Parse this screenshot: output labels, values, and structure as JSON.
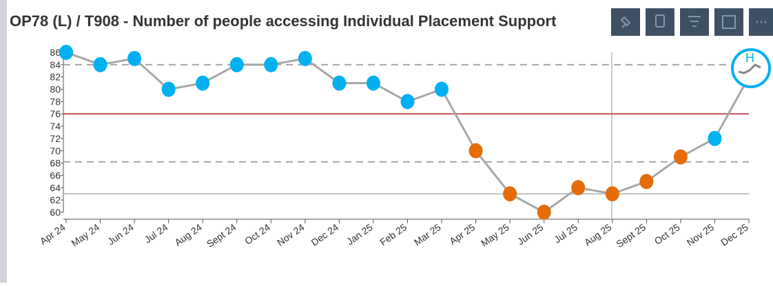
{
  "chart_data": {
    "type": "line",
    "title": "OP78 (L) / T908 - Number of people accessing Individual Placement Support",
    "categories": [
      "Apr 24",
      "May 24",
      "Jun 24",
      "Jul 24",
      "Aug 24",
      "Sept 24",
      "Oct 24",
      "Nov 24",
      "Dec 24",
      "Jan 25",
      "Feb 25",
      "Mar 25",
      "Apr 25",
      "May 25",
      "Jun 25",
      "Jul 25",
      "Aug 25",
      "Sept 25",
      "Oct 25",
      "Nov 25",
      "Dec 25"
    ],
    "series": [
      {
        "color": "#a6a6a6",
        "values": [
          86,
          84,
          85,
          80,
          81,
          84,
          84,
          85,
          81,
          81,
          78,
          80,
          70,
          63,
          60,
          64,
          63,
          65,
          69,
          72,
          82
        ],
        "point_colors": [
          "#00b0f0",
          "#00b0f0",
          "#00b0f0",
          "#00b0f0",
          "#00b0f0",
          "#00b0f0",
          "#00b0f0",
          "#00b0f0",
          "#00b0f0",
          "#00b0f0",
          "#00b0f0",
          "#00b0f0",
          "#e46c0a",
          "#e46c0a",
          "#e46c0a",
          "#e46c0a",
          "#e46c0a",
          "#e46c0a",
          "#e46c0a",
          "#00b0f0",
          "#00b0f0"
        ]
      }
    ],
    "reference_lines": [
      {
        "value": 84,
        "color": "#a6a6a6",
        "style": "dashed"
      },
      {
        "value": 76,
        "color": "#c0504d",
        "style": "solid"
      },
      {
        "value": 68.2,
        "color": "#a6a6a6",
        "style": "dashed"
      },
      {
        "value": 63,
        "color": "#bfbfbf",
        "style": "solid"
      }
    ],
    "ylim": [
      60,
      86
    ],
    "yticks": [
      60,
      62,
      64,
      66,
      68,
      70,
      72,
      74,
      76,
      78,
      80,
      82,
      84,
      86
    ]
  }
}
